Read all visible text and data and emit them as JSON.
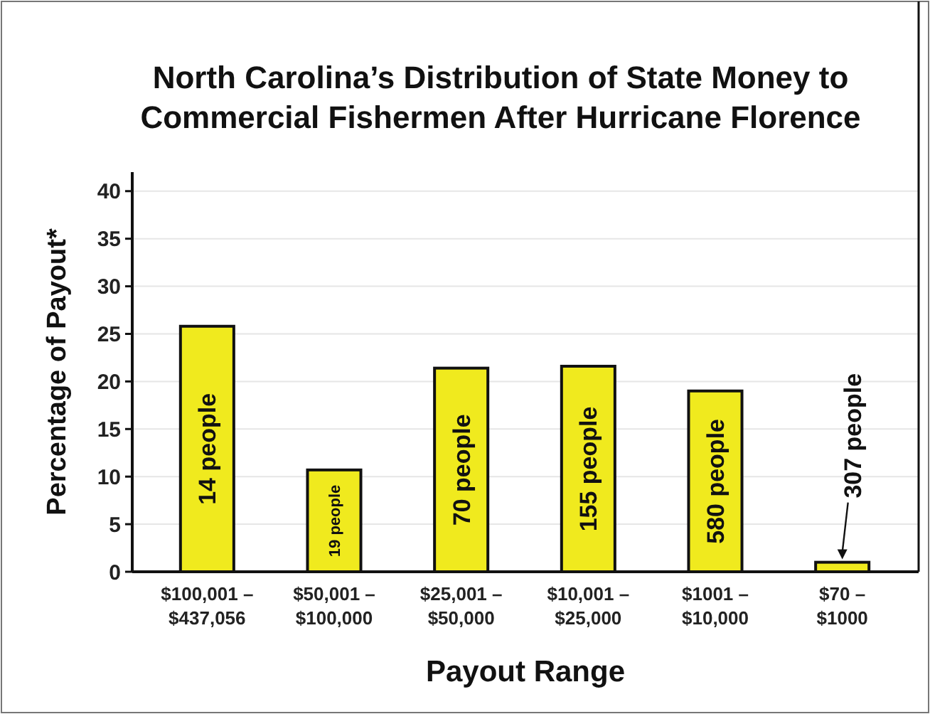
{
  "chart_data": {
    "type": "bar",
    "title": "North Carolina’s Distribution of State Money to\nCommercial Fishermen After Hurricane Florence",
    "xlabel": "Payout Range",
    "ylabel": "Percentage of Payout*",
    "categories": [
      "$100,001 –\n$437,056",
      "$50,001 –\n$100,000",
      "$25,001 –\n$50,000",
      "$10,001 –\n$25,000",
      "$1001 –\n$10,000",
      "$70 –\n$1000"
    ],
    "values": [
      25.8,
      10.7,
      21.4,
      21.6,
      19.0,
      1.0
    ],
    "color": "#f0ea1e",
    "ylim": [
      0,
      42
    ],
    "yticks": [
      0,
      5,
      10,
      15,
      20,
      25,
      30,
      35,
      40
    ],
    "grid": "y",
    "annotations": [
      {
        "text": "14 people",
        "x": "$100,001 –\n$437,056",
        "y": 25.8
      },
      {
        "text": "19 people",
        "x": "$50,001 –\n$100,000",
        "y": 10.7
      },
      {
        "text": "70 people",
        "x": "$25,001 –\n$50,000",
        "y": 21.4
      },
      {
        "text": "155 people",
        "x": "$10,001 –\n$25,000",
        "y": 21.6
      },
      {
        "text": "580 people",
        "x": "$1001 –\n$10,000",
        "y": 19.0
      },
      {
        "text": "307 people",
        "x": "$70 –\n$1000",
        "y": 1.0
      }
    ]
  }
}
